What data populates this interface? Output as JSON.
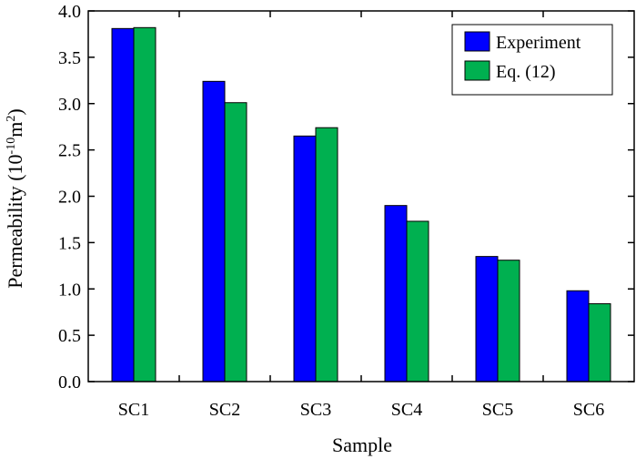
{
  "chart_data": {
    "type": "bar",
    "categories": [
      "SC1",
      "SC2",
      "SC3",
      "SC4",
      "SC5",
      "SC6"
    ],
    "series": [
      {
        "name": "Experiment",
        "color": "#0000ff",
        "values": [
          3.81,
          3.24,
          2.65,
          1.9,
          1.35,
          0.98
        ]
      },
      {
        "name": "Eq. (12)",
        "color": "#00b050",
        "values": [
          3.82,
          3.01,
          2.74,
          1.73,
          1.31,
          0.84
        ]
      }
    ],
    "title": "",
    "xlabel": "Sample",
    "ylabel_main": "Permeability (10",
    "ylabel_exp1": "-10",
    "ylabel_mid": "m",
    "ylabel_exp2": "2",
    "ylabel_end": ")",
    "ylim": [
      0,
      4.0
    ],
    "yticks": [
      "0.0",
      "0.5",
      "1.0",
      "1.5",
      "2.0",
      "2.5",
      "3.0",
      "3.5",
      "4.0"
    ],
    "legend_position": "top-right",
    "grid": false
  }
}
